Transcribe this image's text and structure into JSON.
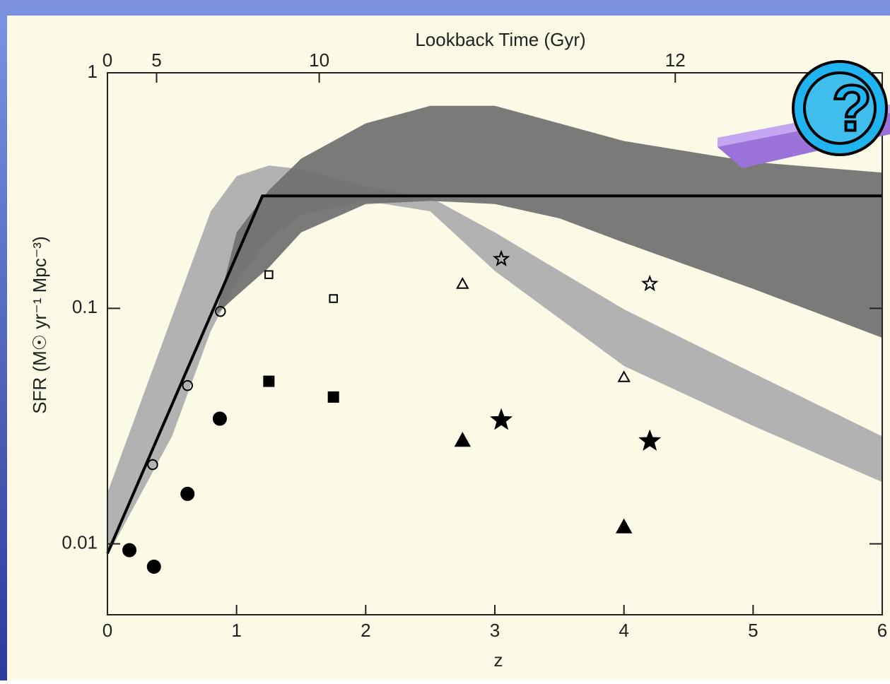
{
  "chart_data": {
    "type": "scatter",
    "title": "Lookback Time (Gyr)",
    "x_label": "z",
    "y_label": "SFR (M☉ yr⁻¹ Mpc⁻³)",
    "xlim": [
      0,
      6
    ],
    "xticks": [
      0,
      1,
      2,
      3,
      4,
      5,
      6
    ],
    "ylim": [
      0.005,
      1
    ],
    "yticks": [
      1,
      0.1,
      0.01
    ],
    "log_y": true,
    "x2ticks": [
      0,
      5,
      10,
      12
    ],
    "bands": [
      {
        "color": "#b2b2b2",
        "x": [
          0,
          0.5,
          0.8,
          1.0,
          1.25,
          1.5,
          2,
          2.5,
          3,
          4,
          5,
          6
        ],
        "upper": [
          0.0165,
          0.092,
          0.258,
          0.364,
          0.404,
          0.39,
          0.329,
          0.296,
          0.21,
          0.099,
          0.0531,
          0.0286
        ],
        "lower": [
          0.0089,
          0.0286,
          0.08,
          0.13,
          0.196,
          0.249,
          0.286,
          0.258,
          0.144,
          0.0569,
          0.0317,
          0.0183
        ]
      },
      {
        "color": "#6f6f6f",
        "x": [
          0.85,
          1,
          1.25,
          1.5,
          2,
          2.5,
          3,
          3.5,
          4,
          5,
          6
        ],
        "upper": [
          0.099,
          0.21,
          0.317,
          0.432,
          0.61,
          0.724,
          0.724,
          0.61,
          0.513,
          0.418,
          0.377
        ],
        "lower": [
          0.095,
          0.113,
          0.149,
          0.21,
          0.277,
          0.286,
          0.277,
          0.241,
          0.19,
          0.121,
          0.075
        ]
      }
    ],
    "lines": [
      {
        "color": "#000000",
        "x": [
          0,
          1.2,
          6
        ],
        "values": [
          0.0091,
          0.3,
          0.3
        ]
      }
    ],
    "series": [
      {
        "marker": "circle",
        "filled": false,
        "color": "#000000",
        "x": [
          0.35,
          0.62,
          0.875
        ],
        "values": [
          0.0217,
          0.047,
          0.097
        ]
      },
      {
        "marker": "circle",
        "filled": true,
        "color": "#000000",
        "x": [
          0.17,
          0.36,
          0.62,
          0.87
        ],
        "values": [
          0.0094,
          0.008,
          0.0163,
          0.034
        ]
      },
      {
        "marker": "square",
        "filled": false,
        "color": "#000000",
        "x": [
          1.25,
          1.75
        ],
        "values": [
          0.139,
          0.11
        ]
      },
      {
        "marker": "square",
        "filled": true,
        "color": "#000000",
        "x": [
          1.25,
          1.75
        ],
        "values": [
          0.049,
          0.042
        ]
      },
      {
        "marker": "triangle",
        "filled": false,
        "color": "#000000",
        "x": [
          2.75,
          4.0
        ],
        "values": [
          0.127,
          0.051
        ]
      },
      {
        "marker": "triangle",
        "filled": true,
        "color": "#000000",
        "x": [
          2.75,
          4.0
        ],
        "values": [
          0.0275,
          0.0118
        ]
      },
      {
        "marker": "star",
        "filled": false,
        "color": "#000000",
        "x": [
          3.05,
          4.2
        ],
        "values": [
          0.162,
          0.127
        ]
      },
      {
        "marker": "star",
        "filled": true,
        "color": "#000000",
        "x": [
          3.05,
          4.2
        ],
        "values": [
          0.0335,
          0.0273
        ]
      }
    ]
  },
  "badge": "?"
}
